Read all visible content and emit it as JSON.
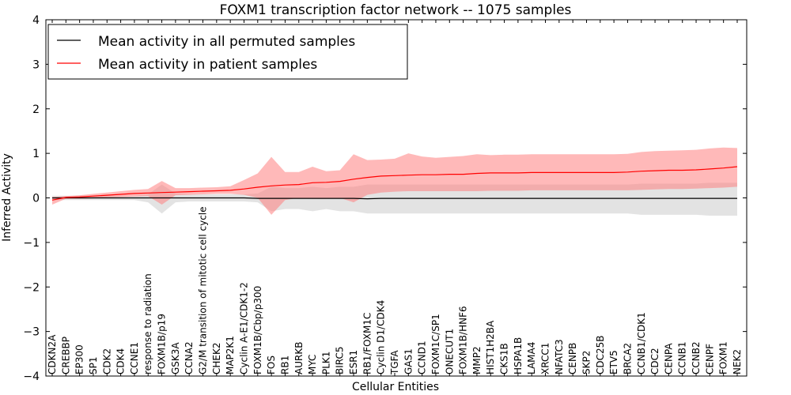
{
  "chart_data": {
    "type": "line",
    "title": "FOXM1 transcription factor network -- 1075 samples",
    "xlabel": "Cellular Entities",
    "ylabel": "Inferred Activity",
    "ylim": [
      -4,
      4
    ],
    "yticks": [
      -4,
      -3,
      -2,
      -1,
      0,
      1,
      2,
      3,
      4
    ],
    "ytick_labels": [
      "−4",
      "−3",
      "−2",
      "−1",
      "0",
      "1",
      "2",
      "3",
      "4"
    ],
    "legend_position": "top-left",
    "categories": [
      "CDKN2A",
      "CREBBP",
      "EP300",
      "SP1",
      "CDK2",
      "CDK4",
      "CCNE1",
      "response to radiation",
      "FOXM1B/p19",
      "GSK3A",
      "CCNA2",
      "G2/M transition of mitotic cell cycle",
      "CHEK2",
      "MAP2K1",
      "Cyclin A-E1/CDK1-2",
      "FOXM1B/Cbp/p300",
      "FOS",
      "RB1",
      "AURKB",
      "MYC",
      "PLK1",
      "BIRC5",
      "ESR1",
      "RB1/FOXM1C",
      "Cyclin D1/CDK4",
      "TGFA",
      "GAS1",
      "CCND1",
      "FOXM1C/SP1",
      "ONECUT1",
      "FOXM1B/HNF6",
      "MMP2",
      "HIST1H2BA",
      "CKS1B",
      "HSPA1B",
      "LAMA4",
      "XRCC1",
      "NFATC3",
      "CENPB",
      "SKP2",
      "CDC25B",
      "ETV5",
      "BRCA2",
      "CCNB1/CDK1",
      "CDC2",
      "CENPA",
      "CCNB1",
      "CCNB2",
      "CENPF",
      "FOXM1",
      "NEK2"
    ],
    "series": [
      {
        "name": "Mean activity in all permuted samples",
        "color": "#000000",
        "band_color": "#c8c8c8",
        "values": [
          0,
          0,
          0,
          0,
          0,
          0,
          0,
          0,
          0,
          0,
          0,
          0,
          0,
          0,
          0,
          -0.01,
          -0.01,
          -0.01,
          -0.01,
          -0.01,
          -0.01,
          -0.01,
          -0.01,
          -0.02,
          -0.01,
          -0.01,
          -0.01,
          -0.01,
          -0.01,
          -0.01,
          -0.01,
          -0.01,
          -0.01,
          -0.01,
          -0.01,
          -0.01,
          -0.01,
          -0.01,
          -0.01,
          -0.01,
          -0.01,
          -0.01,
          -0.01,
          -0.01,
          -0.01,
          -0.01,
          -0.01,
          -0.01,
          -0.01,
          -0.01,
          -0.01
        ],
        "lower": [
          -0.05,
          -0.05,
          -0.05,
          -0.05,
          -0.05,
          -0.05,
          -0.05,
          -0.1,
          -0.35,
          -0.1,
          -0.08,
          -0.08,
          -0.08,
          -0.08,
          -0.08,
          -0.1,
          -0.3,
          -0.25,
          -0.25,
          -0.3,
          -0.25,
          -0.3,
          -0.3,
          -0.35,
          -0.35,
          -0.35,
          -0.35,
          -0.35,
          -0.35,
          -0.35,
          -0.35,
          -0.35,
          -0.35,
          -0.35,
          -0.35,
          -0.35,
          -0.35,
          -0.35,
          -0.35,
          -0.35,
          -0.35,
          -0.35,
          -0.35,
          -0.38,
          -0.38,
          -0.38,
          -0.38,
          -0.38,
          -0.4,
          -0.4,
          -0.4
        ],
        "upper": [
          0.05,
          0.05,
          0.05,
          0.05,
          0.05,
          0.05,
          0.05,
          0.08,
          0.3,
          0.1,
          0.08,
          0.08,
          0.08,
          0.08,
          0.08,
          0.1,
          0.25,
          0.22,
          0.22,
          0.25,
          0.22,
          0.25,
          0.25,
          0.3,
          0.3,
          0.3,
          0.3,
          0.3,
          0.3,
          0.3,
          0.3,
          0.3,
          0.3,
          0.3,
          0.3,
          0.3,
          0.3,
          0.3,
          0.3,
          0.3,
          0.3,
          0.3,
          0.3,
          0.32,
          0.32,
          0.32,
          0.32,
          0.32,
          0.34,
          0.34,
          0.34
        ]
      },
      {
        "name": "Mean activity in patient samples",
        "color": "#ff0000",
        "band_color": "#ff8080",
        "values": [
          -0.05,
          0.01,
          0.02,
          0.04,
          0.06,
          0.08,
          0.1,
          0.11,
          0.12,
          0.13,
          0.14,
          0.15,
          0.16,
          0.17,
          0.2,
          0.24,
          0.27,
          0.29,
          0.3,
          0.34,
          0.35,
          0.37,
          0.42,
          0.46,
          0.49,
          0.5,
          0.51,
          0.52,
          0.52,
          0.53,
          0.53,
          0.55,
          0.56,
          0.56,
          0.56,
          0.57,
          0.57,
          0.57,
          0.57,
          0.57,
          0.57,
          0.57,
          0.58,
          0.6,
          0.61,
          0.62,
          0.62,
          0.63,
          0.65,
          0.67,
          0.7
        ],
        "lower": [
          -0.15,
          -0.02,
          -0.02,
          -0.01,
          0.01,
          0.02,
          0.03,
          0.04,
          -0.15,
          0.06,
          0.07,
          0.08,
          0.09,
          0.09,
          0.07,
          0.0,
          -0.38,
          -0.05,
          0.0,
          -0.02,
          -0.02,
          0.0,
          -0.1,
          0.07,
          0.12,
          0.14,
          0.15,
          0.15,
          0.15,
          0.15,
          0.15,
          0.15,
          0.16,
          0.16,
          0.16,
          0.17,
          0.17,
          0.17,
          0.17,
          0.17,
          0.17,
          0.17,
          0.17,
          0.18,
          0.19,
          0.2,
          0.2,
          0.21,
          0.22,
          0.23,
          0.25
        ],
        "upper": [
          0.02,
          0.04,
          0.06,
          0.09,
          0.12,
          0.15,
          0.18,
          0.2,
          0.38,
          0.22,
          0.22,
          0.23,
          0.24,
          0.26,
          0.4,
          0.55,
          0.92,
          0.58,
          0.58,
          0.7,
          0.6,
          0.62,
          0.98,
          0.85,
          0.86,
          0.88,
          1.0,
          0.93,
          0.9,
          0.92,
          0.94,
          0.98,
          0.96,
          0.97,
          0.97,
          0.98,
          0.98,
          0.98,
          0.98,
          0.98,
          0.98,
          0.98,
          0.99,
          1.03,
          1.05,
          1.06,
          1.07,
          1.08,
          1.11,
          1.13,
          1.12
        ]
      }
    ]
  }
}
